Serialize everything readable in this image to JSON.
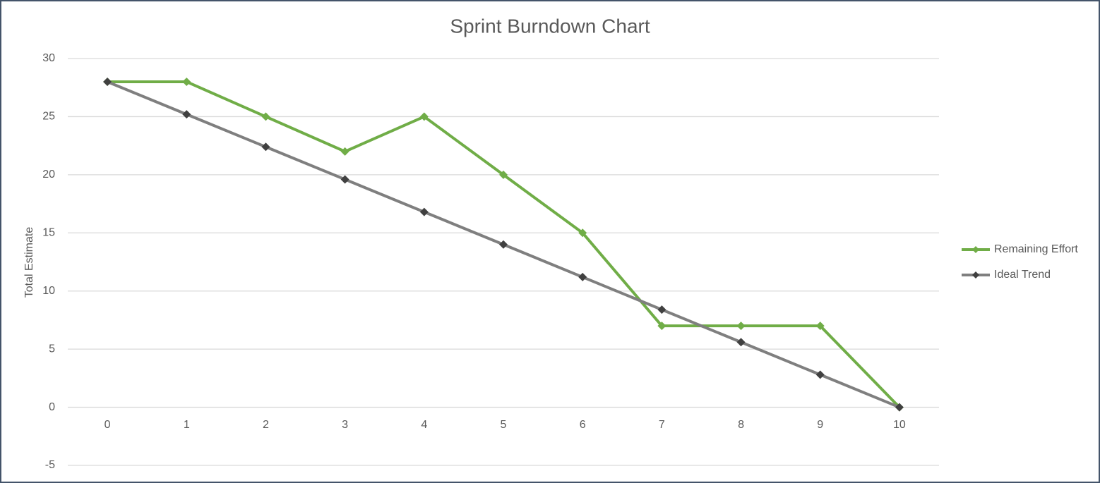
{
  "chart_data": {
    "type": "line",
    "title": "Sprint Burndown Chart",
    "y_label": "Total Estimate",
    "x": [
      0,
      1,
      2,
      3,
      4,
      5,
      6,
      7,
      8,
      9,
      10
    ],
    "xlim": [
      -0.5,
      10.5
    ],
    "xticks": [
      0,
      1,
      2,
      3,
      4,
      5,
      6,
      7,
      8,
      9,
      10
    ],
    "ylim": [
      -5,
      30
    ],
    "yticks": [
      -5,
      0,
      5,
      10,
      15,
      20,
      25,
      30
    ],
    "grid": true,
    "legend": "right",
    "series": [
      {
        "name": "Remaining Effort",
        "color": "#70ad47",
        "marker_color": "#70ad47",
        "values": [
          28,
          28,
          25,
          22,
          25,
          20,
          15,
          7,
          7,
          7,
          0
        ]
      },
      {
        "name": "Ideal Trend",
        "color": "#7f7f7f",
        "marker_color": "#404040",
        "values": [
          28,
          25.2,
          22.4,
          19.6,
          16.8,
          14,
          11.2,
          8.4,
          5.6,
          2.8,
          0
        ]
      }
    ]
  }
}
